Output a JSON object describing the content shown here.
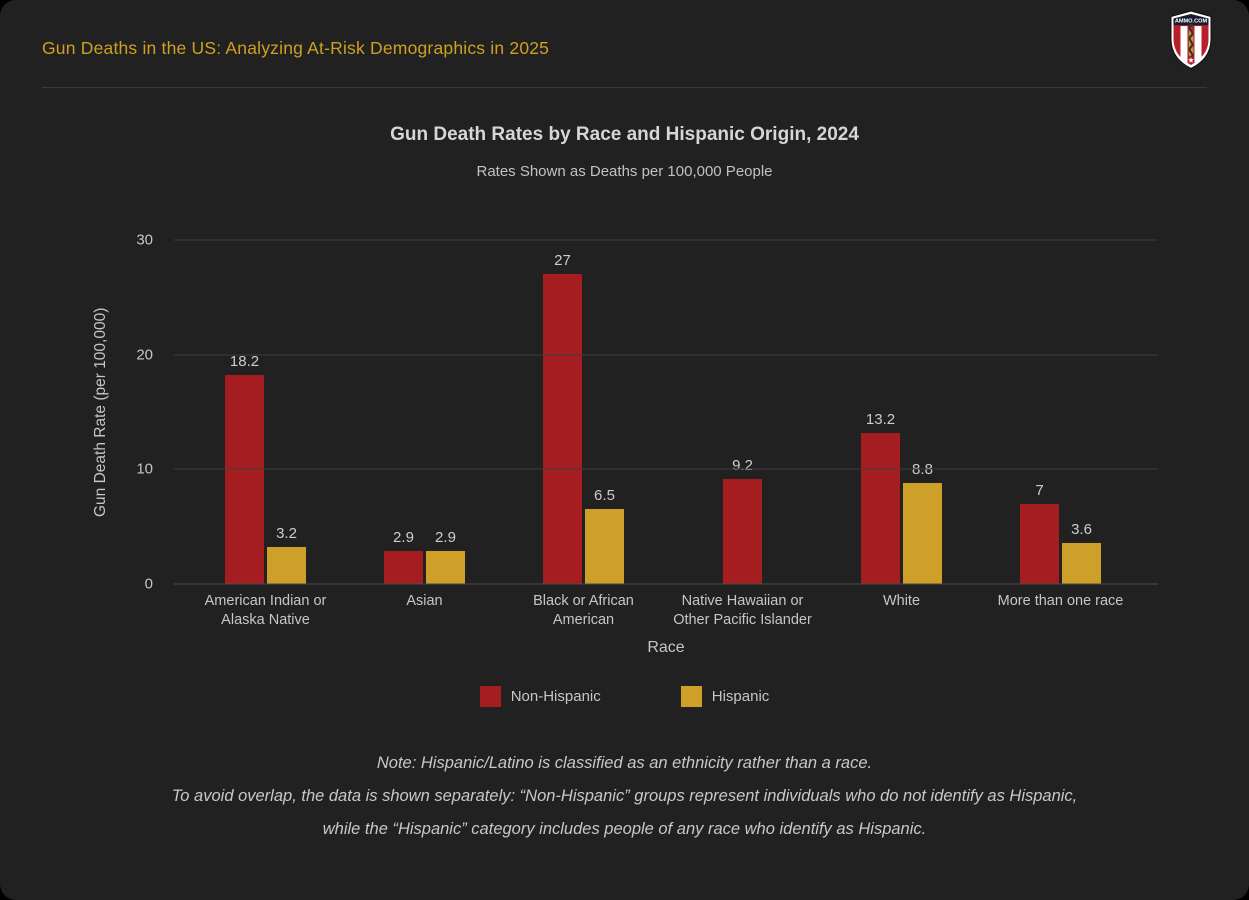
{
  "header": {
    "title": "Gun Deaths in the US: Analyzing At-Risk Demographics in 2025",
    "logo_text": "AMMO.COM"
  },
  "chart_data": {
    "type": "bar",
    "title": "Gun Death Rates by Race and Hispanic Origin, 2024",
    "subtitle": "Rates Shown as Deaths per 100,000 People",
    "xlabel": "Race",
    "ylabel": "Gun Death Rate (per 100,000)",
    "ylim": [
      0,
      30
    ],
    "yticks": [
      0,
      10,
      20,
      30
    ],
    "grid": true,
    "legend_position": "bottom-center",
    "categories": [
      "American Indian or\nAlaska Native",
      "Asian",
      "Black or African\nAmerican",
      "Native Hawaiian or\nOther Pacific Islander",
      "White",
      "More than one race"
    ],
    "series": [
      {
        "name": "Non-Hispanic",
        "color": "#A51D21",
        "values": [
          18.2,
          2.9,
          27,
          9.2,
          13.2,
          7
        ]
      },
      {
        "name": "Hispanic",
        "color": "#CFA029",
        "values": [
          3.2,
          2.9,
          6.5,
          null,
          8.8,
          3.6
        ]
      }
    ]
  },
  "note": {
    "lines": [
      "Note: Hispanic/Latino is classified as an ethnicity rather than a race.",
      "To avoid overlap, the data is shown separately: “Non-Hispanic” groups represent individuals who do not identify as Hispanic,",
      "while the “Hispanic” category includes people of any race who identify as Hispanic."
    ]
  },
  "colors": {
    "card_background": "#212121",
    "header_gold": "#CEA01F",
    "non_hispanic_red": "#A51D21",
    "hispanic_gold": "#CFA029",
    "gridline": "#3D3D3D",
    "text_light": "#C8C8C8"
  }
}
